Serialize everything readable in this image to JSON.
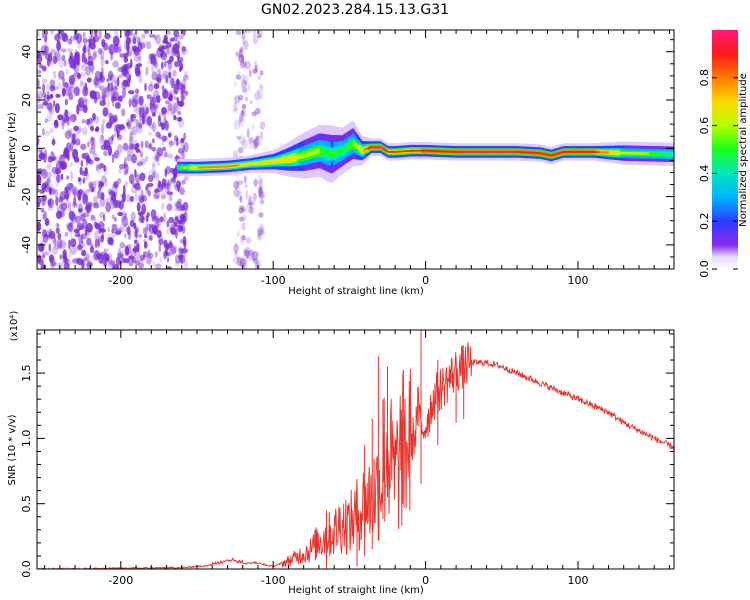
{
  "figure": {
    "title": "GN02.2023.284.15.13.G31"
  },
  "colors": {
    "frame": "#000000",
    "snr_line": "#e8322b",
    "noise_cloud": "#7a2bd6",
    "colormap": [
      "#f5f0ff",
      "#6e2cf2",
      "#2a3cff",
      "#00b4ff",
      "#00e8c0",
      "#19ff19",
      "#b4ff00",
      "#ffd800",
      "#ff7a00",
      "#ff1a1a",
      "#ff1a7a"
    ]
  },
  "chart_data": [
    {
      "id": "spectrogram",
      "type": "heatmap",
      "title": "GN02.2023.284.15.13.G31",
      "xlabel": "Height of straight line (km)",
      "ylabel": "Frequency (Hz)",
      "xlim": [
        -255,
        163
      ],
      "ylim": [
        -50,
        49
      ],
      "x_ticks": [
        -200,
        -100,
        0,
        100
      ],
      "x_tick_labels": [
        "-200",
        "-100",
        "0",
        "100"
      ],
      "y_ticks": [
        -40,
        -20,
        0,
        20,
        40
      ],
      "y_tick_labels": [
        "-40",
        "-20",
        "0",
        "20",
        "40"
      ],
      "colorbar": {
        "label": "Normalized spectral amplitude",
        "range": [
          0,
          1
        ],
        "ticks": [
          0.0,
          0.2,
          0.4,
          0.6,
          0.8
        ],
        "tick_labels": [
          "0.0",
          "0.2",
          "0.4",
          "0.6",
          "0.8"
        ]
      },
      "ridge": {
        "x": [
          -163,
          -150,
          -130,
          -115,
          -100,
          -90,
          -80,
          -70,
          -62,
          -55,
          -48,
          -42,
          -36,
          -30,
          -25,
          -20,
          -10,
          0,
          20,
          40,
          60,
          75,
          82,
          90,
          110,
          130,
          163
        ],
        "freq": [
          -8.0,
          -8.0,
          -7.5,
          -6.5,
          -5.5,
          -4.5,
          -3.0,
          -1.0,
          -2.5,
          -1.0,
          2.0,
          -1.0,
          0.5,
          0.5,
          -1.5,
          -1.5,
          -1.0,
          -1.0,
          -1.5,
          -1.5,
          -1.5,
          -2.0,
          -3.0,
          -1.5,
          -1.5,
          -2.0,
          -2.5
        ],
        "amplitude": [
          0.5,
          0.75,
          0.8,
          0.7,
          0.75,
          0.7,
          0.6,
          0.55,
          0.45,
          0.5,
          0.55,
          0.7,
          0.95,
          1.0,
          0.85,
          0.85,
          0.85,
          0.9,
          0.95,
          0.95,
          0.95,
          0.9,
          0.95,
          0.9,
          0.9,
          0.6,
          0.5
        ],
        "width_hz": [
          3,
          3,
          3,
          3,
          4,
          6,
          8,
          9,
          10,
          8,
          8,
          5,
          3,
          3,
          3,
          3,
          3,
          3,
          3,
          3,
          3,
          3,
          3,
          3,
          3,
          4,
          4
        ]
      },
      "noise_regions": [
        {
          "x_range": [
            -255,
            -157
          ],
          "level": "dense"
        },
        {
          "x_range": [
            -125,
            -107
          ],
          "level": "sparse"
        }
      ]
    },
    {
      "id": "snr",
      "type": "line",
      "xlabel": "Height of straight line (km)",
      "ylabel": "SNR (10 * v/v)",
      "y_scale_note": "(x10⁴)",
      "xlim": [
        -255,
        163
      ],
      "ylim": [
        0,
        1.83
      ],
      "x_ticks": [
        -200,
        -100,
        0,
        100
      ],
      "x_tick_labels": [
        "-200",
        "-100",
        "0",
        "100"
      ],
      "y_ticks": [
        0.0,
        0.5,
        1.0,
        1.5
      ],
      "y_tick_labels": [
        "0.0",
        "0.5",
        "1.0",
        "1.5"
      ],
      "series": [
        {
          "x": [
            -255,
            -200,
            -160,
            -140,
            -128,
            -120,
            -112,
            -105,
            -100,
            -95,
            -90,
            -85,
            -80,
            -75,
            -70,
            -65,
            -60,
            -55,
            -50,
            -45,
            -40,
            -35,
            -30,
            -27,
            -25,
            -22,
            -20,
            -17,
            -15,
            -12,
            -10,
            -7,
            -5,
            -3,
            0,
            5,
            10,
            15,
            20,
            25,
            30,
            35,
            40,
            50,
            60,
            70,
            80,
            90,
            100,
            110,
            120,
            130,
            140,
            150,
            163
          ],
          "values": [
            0.0,
            0.005,
            0.01,
            0.03,
            0.06,
            0.04,
            0.05,
            0.03,
            0.02,
            0.04,
            0.06,
            0.09,
            0.12,
            0.15,
            0.22,
            0.25,
            0.28,
            0.36,
            0.34,
            0.42,
            0.5,
            0.55,
            0.65,
            0.85,
            0.95,
            0.75,
            0.7,
            0.85,
            0.9,
            0.95,
            0.98,
            1.02,
            1.25,
            1.05,
            1.1,
            1.3,
            1.38,
            1.45,
            1.52,
            1.55,
            1.58,
            1.58,
            1.58,
            1.55,
            1.5,
            1.45,
            1.4,
            1.35,
            1.3,
            1.25,
            1.2,
            1.12,
            1.06,
            1.0,
            0.93
          ]
        }
      ],
      "spikes": [
        {
          "x": -65,
          "y": 0.45
        },
        {
          "x": -45,
          "y": 0.62
        },
        {
          "x": -40,
          "y": 0.95
        },
        {
          "x": -35,
          "y": 1.15
        },
        {
          "x": -31,
          "y": 1.63
        },
        {
          "x": -28,
          "y": 1.3
        },
        {
          "x": -25,
          "y": 1.55
        },
        {
          "x": -15,
          "y": 1.15
        },
        {
          "x": -3,
          "y": 1.83
        },
        {
          "x": 8,
          "y": 1.6
        },
        {
          "x": 20,
          "y": 1.62
        },
        {
          "x": 25,
          "y": 1.61
        }
      ]
    }
  ]
}
